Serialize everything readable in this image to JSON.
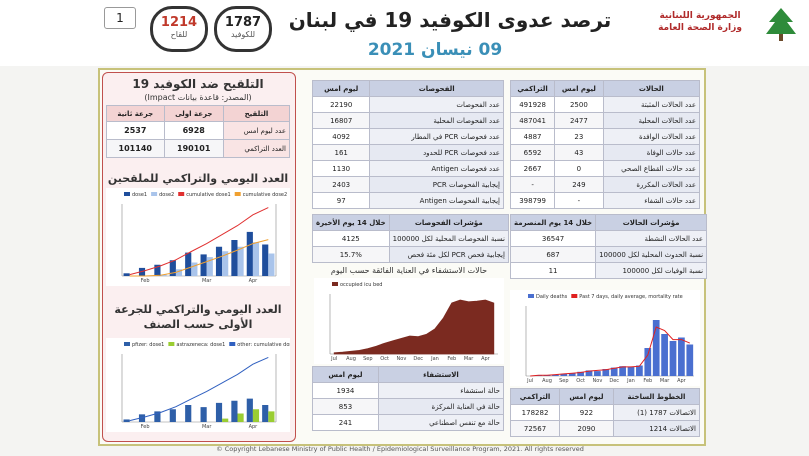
{
  "header": {
    "page_number": "1",
    "title": "ترصد عدوى الكوفيد 19 في لبنان",
    "date": "09 نيسان 2021",
    "ministry": [
      "الجمهورية اللبنانية",
      "وزارة الصحة العامة"
    ],
    "hotlines": [
      {
        "number": "1214",
        "label": "للقاح"
      },
      {
        "number": "1787",
        "label": "للكوفيد"
      }
    ]
  },
  "vaccination": {
    "title": "التلقيح ضد الكوفيد 19",
    "source": "(المصدر: قاعدة بيانات Impact)",
    "table": {
      "header": [
        "التلقيح",
        "جرعة اولى",
        "جرعة ثانية"
      ],
      "rows": [
        [
          "عدد ليوم امس",
          6928,
          2537
        ],
        [
          "العدد التراكمي",
          190101,
          101140
        ]
      ]
    },
    "chart1_title": "العدد اليومي والتراكمي للملقحين",
    "chart2_title": "العدد اليومي والتراكمي للجرعة الأولى حسب الصنف"
  },
  "tests": {
    "table": {
      "header": [
        "الفحوصات",
        "ليوم امس"
      ],
      "rows": [
        [
          "عدد الفحوصات",
          22190
        ],
        [
          "عدد الفحوصات المحلية",
          16807
        ],
        [
          "عدد فحوصات PCR في المطار",
          4092
        ],
        [
          "عدد فحوصات PCR للحدود",
          161
        ],
        [
          "عدد فحوصات Antigen",
          1130
        ],
        [
          "إيجابية الفحوصات PCR",
          2403
        ],
        [
          "إيجابية الفحوصات Antigen",
          97
        ]
      ]
    },
    "indicators": {
      "header": [
        "مؤشرات الفحوصات",
        "خلال 14 يوم الأخيرة"
      ],
      "rows": [
        [
          "نسبة الفحوصات المحلية لكل 100000",
          4125
        ],
        [
          "إيجابية فحص PCR لكل مئة فحص",
          "15.7%"
        ]
      ]
    },
    "icu_title": "حالات الاستشفاء في العناية الفائقة حسب اليوم"
  },
  "hospitalization": {
    "table": {
      "header": [
        "الاستشفاء",
        "ليوم امس"
      ],
      "rows": [
        [
          "حالة استشفاء",
          1934
        ],
        [
          "حالة في العناية المركزة",
          853
        ],
        [
          "حالة مع تنفس اصطناعي",
          241
        ]
      ]
    }
  },
  "cases": {
    "table": {
      "header": [
        "الحالات",
        "ليوم امس",
        "التراكمي"
      ],
      "rows": [
        [
          "عدد الحالات المثبتة",
          2500,
          491928
        ],
        [
          "عدد الحالات المحلية",
          2477,
          487041
        ],
        [
          "عدد الحالات الوافدة",
          23,
          4887
        ],
        [
          "عدد حالات الوفاة",
          43,
          6592
        ],
        [
          "عدد حالات القطاع الصحي",
          0,
          2667
        ],
        [
          "عدد الحالات المكررة",
          249,
          "-"
        ],
        [
          "عدد حالات الشفاء",
          "-",
          398799
        ]
      ]
    },
    "indicators": {
      "header": [
        "مؤشرات الحالات",
        "خلال 14 يوم المنصرمة"
      ],
      "rows": [
        [
          "عدد الحالات النشطة",
          36547
        ],
        [
          "نسبة الحدوث المحلية لكل 100000",
          687
        ],
        [
          "نسبة الوفيات لكل 100000",
          11
        ]
      ]
    }
  },
  "hotline_calls": {
    "table": {
      "header": [
        "الخطوط الساخنة",
        "ليوم امس",
        "التراكمي"
      ],
      "rows": [
        [
          "الاتصالات 1787 (1)",
          922,
          178282
        ],
        [
          "الاتصالات 1214",
          2090,
          72567
        ]
      ]
    }
  },
  "footer": "© Copyright Lebanese Ministry of Public Health / Epidemiological Surveillance Program, 2021. All rights reserved",
  "chart_data": [
    {
      "type": "bar",
      "categories": [
        null,
        "Feb",
        null,
        null,
        null,
        "Mar",
        null,
        null,
        "Apr",
        null
      ],
      "ylim": [
        0,
        16000
      ],
      "y2lim": [
        0,
        200000
      ],
      "series": [
        {
          "name": "dose1",
          "color": "#1f4e9c",
          "kind": "bar",
          "values": [
            600,
            1800,
            2500,
            3500,
            5200,
            4800,
            6500,
            8000,
            9800,
            7000
          ]
        },
        {
          "name": "dose2",
          "color": "#a9c4eb",
          "kind": "bar",
          "values": [
            0,
            0,
            300,
            1500,
            3000,
            4200,
            5500,
            6500,
            7500,
            5000
          ]
        },
        {
          "name": "cumulative dose1",
          "color": "#e03030",
          "kind": "line",
          "axis": "y2",
          "values": [
            4000,
            15000,
            28000,
            45000,
            68000,
            90000,
            115000,
            140000,
            170000,
            190000
          ]
        },
        {
          "name": "cumulative dose2",
          "color": "#f0a030",
          "kind": "line",
          "axis": "y2",
          "values": [
            0,
            0,
            2000,
            10000,
            25000,
            40000,
            55000,
            72000,
            90000,
            101000
          ]
        }
      ]
    },
    {
      "type": "bar",
      "categories": [
        null,
        "Feb",
        null,
        null,
        null,
        "Mar",
        null,
        null,
        "Apr",
        null
      ],
      "ylim": [
        0,
        16000
      ],
      "y2lim": [
        0,
        200000
      ],
      "series": [
        {
          "name": "pfizer: dose1",
          "color": "#2e5fa8",
          "kind": "bar",
          "values": [
            600,
            1800,
            2500,
            3000,
            4000,
            3500,
            4500,
            5000,
            5500,
            4000
          ]
        },
        {
          "name": "astrazeneca: dose1",
          "color": "#9acd32",
          "kind": "bar",
          "values": [
            0,
            0,
            0,
            0,
            0,
            0,
            800,
            2000,
            3000,
            2500
          ]
        },
        {
          "name": "other: cumulative dose1",
          "color": "#3060c0",
          "kind": "line",
          "axis": "y2",
          "values": [
            4000,
            15000,
            28000,
            45000,
            68000,
            90000,
            115000,
            140000,
            170000,
            190000
          ]
        }
      ]
    },
    {
      "type": "area",
      "categories": [
        "Jul",
        null,
        "Aug",
        null,
        "Sep",
        null,
        "Oct",
        null,
        "Nov",
        null,
        "Dec",
        null,
        "Jan",
        null,
        "Feb",
        null,
        "Mar",
        null,
        "Apr",
        null
      ],
      "ylim": [
        0,
        1000
      ],
      "series": [
        {
          "name": "occupied icu bed",
          "color": "#7b2a20",
          "kind": "area",
          "values": [
            20,
            30,
            45,
            60,
            90,
            130,
            180,
            220,
            260,
            300,
            290,
            330,
            420,
            600,
            850,
            900,
            870,
            880,
            900,
            850
          ]
        }
      ]
    },
    {
      "type": "bar",
      "categories": [
        "Jul",
        null,
        "Aug",
        null,
        "Sep",
        null,
        "Oct",
        null,
        "Nov",
        null,
        "Dec",
        null,
        "Jan",
        null,
        "Feb",
        null,
        "Mar",
        null,
        "Apr",
        null
      ],
      "ylim": [
        0,
        100
      ],
      "series": [
        {
          "name": "Daily deaths",
          "color": "#4a6fd0",
          "kind": "bar",
          "values": [
            0,
            1,
            1,
            2,
            3,
            4,
            6,
            8,
            7,
            10,
            12,
            14,
            13,
            15,
            40,
            80,
            60,
            50,
            55,
            45
          ]
        },
        {
          "name": "Past 7 days, daily average, mortality rate",
          "color": "#e02020",
          "kind": "line",
          "values": [
            0,
            1,
            1,
            2,
            3,
            4,
            5,
            7,
            8,
            9,
            11,
            13,
            13,
            14,
            30,
            70,
            65,
            52,
            52,
            47
          ]
        }
      ]
    }
  ]
}
